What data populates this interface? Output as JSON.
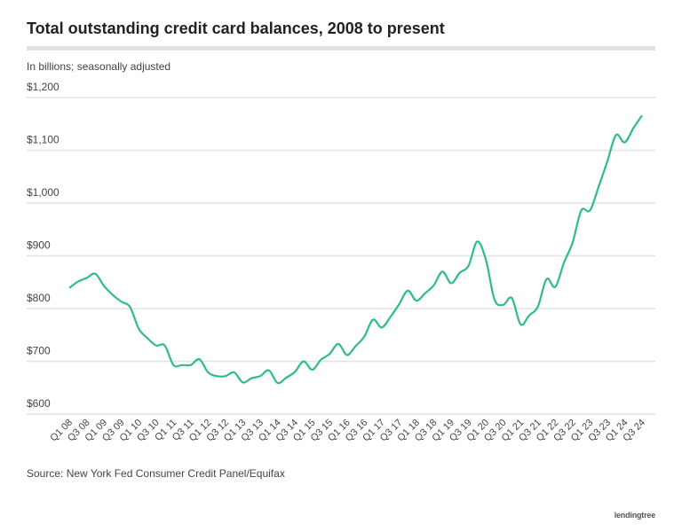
{
  "chart_data": {
    "type": "line",
    "title": "Total outstanding credit card balances, 2008 to present",
    "subtitle": "In billions; seasonally adjusted",
    "source": "Source: New York Fed Consumer Credit Panel/Equifax",
    "logo": "lendingtree",
    "line_color": "#2dbd86",
    "grid": true,
    "ylim": [
      600,
      1200
    ],
    "yticks": [
      600,
      700,
      800,
      900,
      1000,
      1100,
      1200
    ],
    "ytick_labels": [
      "$600",
      "$700",
      "$800",
      "$900",
      "$1,000",
      "$1,100",
      "$1,200"
    ],
    "xtick_labels": [
      "Q1 08",
      "Q3 08",
      "Q1 09",
      "Q3 09",
      "Q1 10",
      "Q3 10",
      "Q1 11",
      "Q3 11",
      "Q1 12",
      "Q3 12",
      "Q1 13",
      "Q3 13",
      "Q1 14",
      "Q3 14",
      "Q1 15",
      "Q3 15",
      "Q1 16",
      "Q3 16",
      "Q1 17",
      "Q3 17",
      "Q1 18",
      "Q3 18",
      "Q1 19",
      "Q3 19",
      "Q1 20",
      "Q3 20",
      "Q1 21",
      "Q3 21",
      "Q1 22",
      "Q3 22",
      "Q1 23",
      "Q3 23",
      "Q1 24",
      "Q3 24"
    ],
    "values": [
      839,
      851,
      858,
      866,
      843,
      826,
      813,
      803,
      762,
      744,
      730,
      730,
      693,
      693,
      693,
      704,
      679,
      672,
      672,
      679,
      660,
      668,
      672,
      683,
      659,
      669,
      680,
      700,
      684,
      703,
      714,
      733,
      712,
      729,
      747,
      779,
      764,
      784,
      808,
      834,
      815,
      829,
      844,
      870,
      848,
      868,
      881,
      927,
      893,
      817,
      807,
      820,
      770,
      787,
      804,
      856,
      841,
      887,
      925,
      986,
      986,
      1031,
      1079,
      1129,
      1115,
      1142,
      1166
    ]
  }
}
